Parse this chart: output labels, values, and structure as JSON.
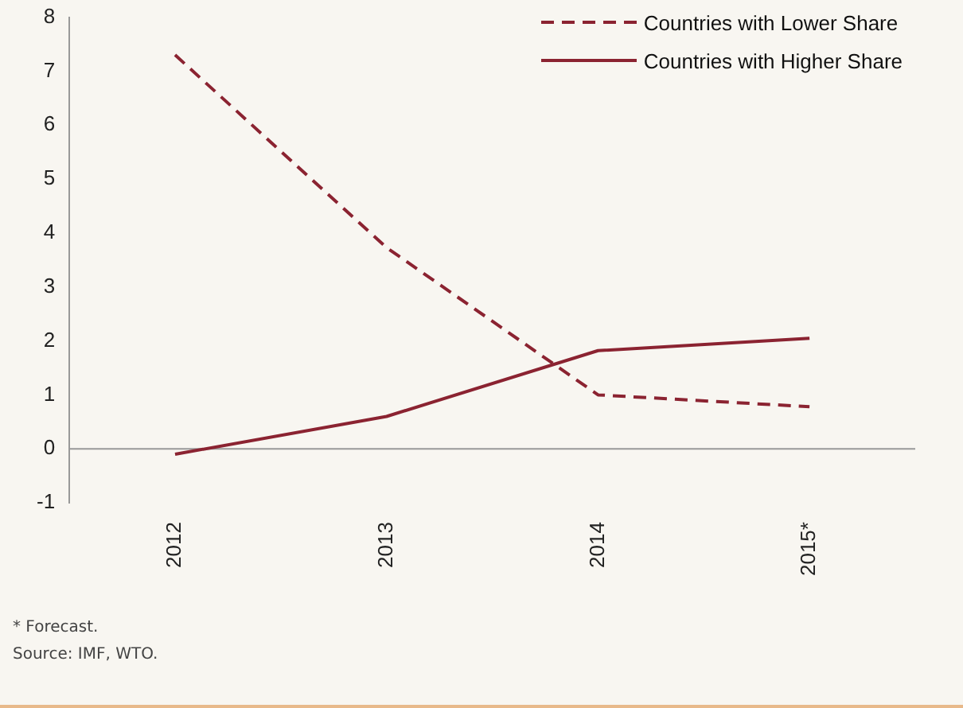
{
  "chart_data": {
    "type": "line",
    "categories": [
      "2012",
      "2013",
      "2014",
      "2015*"
    ],
    "series": [
      {
        "name": "Countries with Lower Share",
        "color": "#8b2331",
        "line_style": "dashed",
        "values": [
          7.3,
          3.73,
          1.0,
          0.78
        ]
      },
      {
        "name": "Countries with Higher Share",
        "color": "#8b2331",
        "line_style": "solid",
        "values": [
          -0.1,
          0.6,
          1.82,
          2.05
        ]
      }
    ],
    "ref_lines": [
      {
        "axis": "y",
        "value": 0,
        "color": "#999999"
      }
    ],
    "ylim": [
      -1,
      8
    ],
    "yticks": [
      -1,
      0,
      1,
      2,
      3,
      4,
      5,
      6,
      7,
      8
    ],
    "grid": false,
    "legend": "top right",
    "marker": "none",
    "annotations": [
      "* Forecast.",
      "Source: IMF, WTO."
    ]
  }
}
